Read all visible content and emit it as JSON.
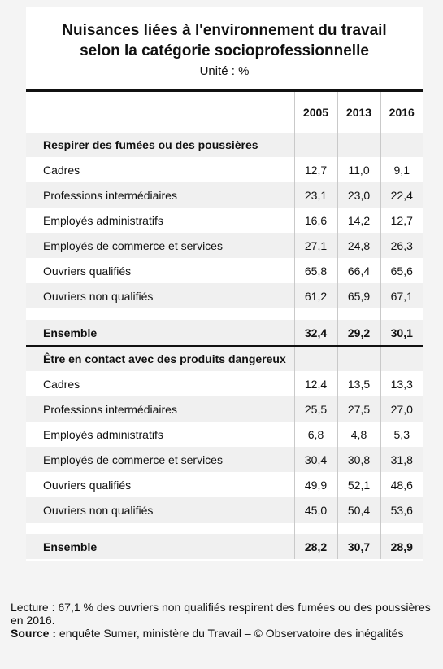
{
  "title_line1": "Nuisances liées à l'environnement du travail",
  "title_line2": "selon la catégorie socioprofessionnelle",
  "unit": "Unité : %",
  "columns": [
    "2005",
    "2013",
    "2016"
  ],
  "sections": [
    {
      "heading": "Respirer des fumées ou des poussières",
      "rows": [
        {
          "label": "Cadres",
          "values": [
            "12,7",
            "11,0",
            "9,1"
          ]
        },
        {
          "label": "Professions intermédiaires",
          "values": [
            "23,1",
            "23,0",
            "22,4"
          ]
        },
        {
          "label": "Employés administratifs",
          "values": [
            "16,6",
            "14,2",
            "12,7"
          ]
        },
        {
          "label": "Employés de commerce et services",
          "values": [
            "27,1",
            "24,8",
            "26,3"
          ]
        },
        {
          "label": "Ouvriers qualifiés",
          "values": [
            "65,8",
            "66,4",
            "65,6"
          ]
        },
        {
          "label": "Ouvriers non qualifiés",
          "values": [
            "61,2",
            "65,9",
            "67,1"
          ]
        }
      ],
      "total": {
        "label": "Ensemble",
        "values": [
          "32,4",
          "29,2",
          "30,1"
        ]
      }
    },
    {
      "heading": "Être en contact avec des produits dangereux",
      "rows": [
        {
          "label": "Cadres",
          "values": [
            "12,4",
            "13,5",
            "13,3"
          ]
        },
        {
          "label": "Professions intermédiaires",
          "values": [
            "25,5",
            "27,5",
            "27,0"
          ]
        },
        {
          "label": "Employés administratifs",
          "values": [
            "6,8",
            "4,8",
            "5,3"
          ]
        },
        {
          "label": "Employés de commerce et services",
          "values": [
            "30,4",
            "30,8",
            "31,8"
          ]
        },
        {
          "label": "Ouvriers qualifiés",
          "values": [
            "49,9",
            "52,1",
            "48,6"
          ]
        },
        {
          "label": "Ouvriers non qualifiés",
          "values": [
            "45,0",
            "50,4",
            "53,6"
          ]
        }
      ],
      "total": {
        "label": "Ensemble",
        "values": [
          "28,2",
          "30,7",
          "28,9"
        ]
      }
    }
  ],
  "footer": {
    "reading": "Lecture : 67,1 % des ouvriers non qualifiés respirent des fumées ou des poussières en 2016.",
    "source_label": "Source :",
    "source_text": " enquête Sumer, ministère du Travail – © Observatoire des inégalités"
  }
}
